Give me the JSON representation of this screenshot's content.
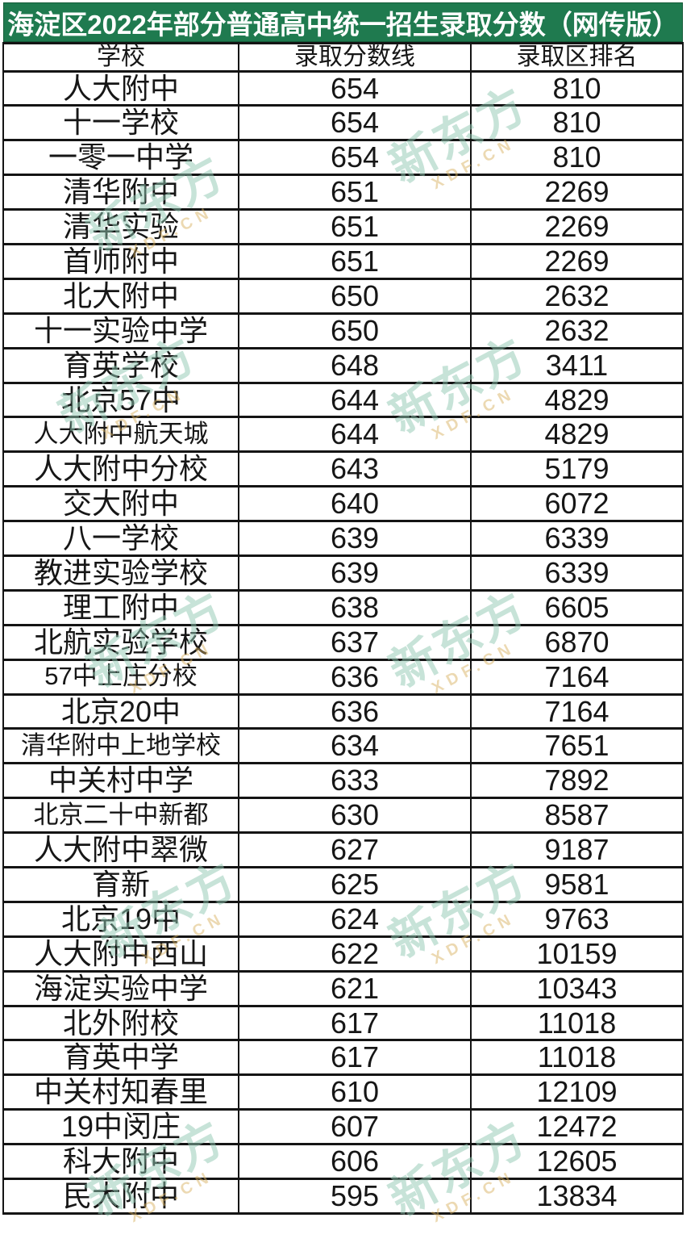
{
  "page_title": "海淀区2022年部分普通高中统一招生录取分数（网传版）",
  "watermark": {
    "text": "新东方",
    "subtext": "XDF.CN"
  },
  "colors": {
    "title_bar_green": "#1f7a4f",
    "title_text": "#ffffff",
    "table_border": "#141414",
    "cell_text": "#161616",
    "watermark_teal": "#90c7b2",
    "watermark_orange": "#d8b05e"
  },
  "chart_data": {
    "type": "table",
    "title": "海淀区2022年部分普通高中统一招生录取分数（网传版）",
    "columns": [
      "学校",
      "录取分数线",
      "录取区排名"
    ],
    "rows": [
      [
        "人大附中",
        "654",
        "810"
      ],
      [
        "十一学校",
        "654",
        "810"
      ],
      [
        "一零一中学",
        "654",
        "810"
      ],
      [
        "清华附中",
        "651",
        "2269"
      ],
      [
        "清华实验",
        "651",
        "2269"
      ],
      [
        "首师附中",
        "651",
        "2269"
      ],
      [
        "北大附中",
        "650",
        "2632"
      ],
      [
        "十一实验中学",
        "650",
        "2632"
      ],
      [
        "育英学校",
        "648",
        "3411"
      ],
      [
        "北京57中",
        "644",
        "4829"
      ],
      [
        "人大附中航天城",
        "644",
        "4829"
      ],
      [
        "人大附中分校",
        "643",
        "5179"
      ],
      [
        "交大附中",
        "640",
        "6072"
      ],
      [
        "八一学校",
        "639",
        "6339"
      ],
      [
        "教进实验学校",
        "639",
        "6339"
      ],
      [
        "理工附中",
        "638",
        "6605"
      ],
      [
        "北航实验学校",
        "637",
        "6870"
      ],
      [
        "57中上庄分校",
        "636",
        "7164"
      ],
      [
        "北京20中",
        "636",
        "7164"
      ],
      [
        "清华附中上地学校",
        "634",
        "7651"
      ],
      [
        "中关村中学",
        "633",
        "7892"
      ],
      [
        "北京二十中新都",
        "630",
        "8587"
      ],
      [
        "人大附中翠微",
        "627",
        "9187"
      ],
      [
        "育新",
        "625",
        "9581"
      ],
      [
        "北京19中",
        "624",
        "9763"
      ],
      [
        "人大附中西山",
        "622",
        "10159"
      ],
      [
        "海淀实验中学",
        "621",
        "10343"
      ],
      [
        "北外附校",
        "617",
        "11018"
      ],
      [
        "育英中学",
        "617",
        "11018"
      ],
      [
        "中关村知春里",
        "610",
        "12109"
      ],
      [
        "19中闵庄",
        "607",
        "12472"
      ],
      [
        "科大附中",
        "606",
        "12605"
      ],
      [
        "民大附中",
        "595",
        "13834"
      ]
    ]
  }
}
